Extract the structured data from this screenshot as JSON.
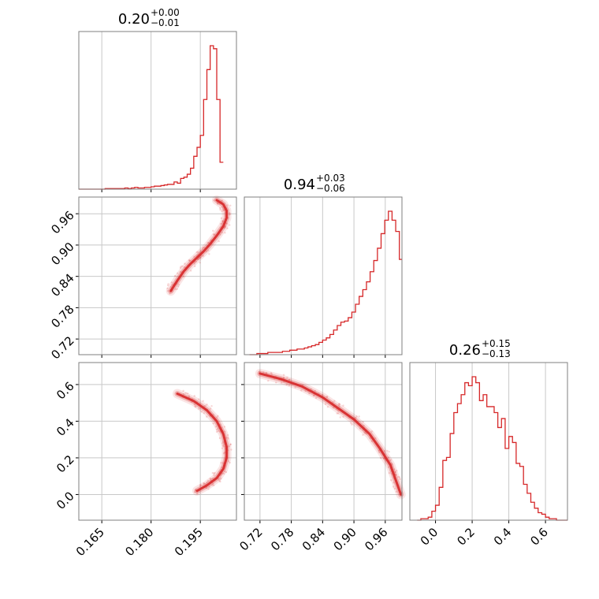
{
  "colors": {
    "series": "#d62728",
    "grid": "#c8c8c8",
    "frame": "#7f7f7f"
  },
  "chart_data": {
    "type": "corner",
    "grid": true,
    "titles": [
      {
        "central": "0.20",
        "plus": "+0.00",
        "minus": "−0.01"
      },
      {
        "central": "0.94",
        "plus": "+0.03",
        "minus": "−0.06"
      },
      {
        "central": "0.26",
        "plus": "+0.15",
        "minus": "−0.13"
      }
    ],
    "params": [
      {
        "range": [
          0.158,
          0.206
        ],
        "ticks": [
          0.165,
          0.18,
          0.195
        ],
        "tick_labels": [
          "0.165",
          "0.180",
          "0.195"
        ]
      },
      {
        "range": [
          0.69,
          0.992
        ],
        "ticks": [
          0.72,
          0.78,
          0.84,
          0.9,
          0.96
        ],
        "tick_labels": [
          "0.72",
          "0.78",
          "0.84",
          "0.90",
          "0.96"
        ]
      },
      {
        "range": [
          -0.14,
          0.72
        ],
        "ticks": [
          0.0,
          0.2,
          0.4,
          0.6
        ],
        "tick_labels": [
          "0.0",
          "0.2",
          "0.4",
          "0.6"
        ]
      }
    ],
    "histograms": [
      {
        "edges_start": 0.158,
        "bin_width": 0.001,
        "heights": [
          0,
          0,
          0,
          0,
          0,
          0,
          0,
          0,
          1,
          1,
          1,
          1,
          1,
          1,
          2,
          1,
          2,
          3,
          2,
          2,
          3,
          3,
          4,
          5,
          5,
          6,
          7,
          8,
          8,
          12,
          10,
          18,
          20,
          25,
          35,
          55,
          70,
          90,
          150,
          200,
          240,
          235,
          150,
          45
        ]
      },
      {
        "edges_start": 0.7,
        "bin_width": 0.007,
        "heights": [
          0,
          0,
          1,
          1,
          1,
          2,
          2,
          2,
          2,
          3,
          3,
          4,
          4,
          5,
          5,
          6,
          7,
          8,
          9,
          11,
          13,
          15,
          18,
          22,
          26,
          29,
          30,
          33,
          38,
          45,
          52,
          58,
          65,
          74,
          84,
          95,
          108,
          120,
          128,
          120,
          110,
          85
        ]
      },
      {
        "edges_start": -0.1,
        "bin_width": 0.02,
        "heights": [
          0,
          1,
          1,
          2,
          6,
          10,
          22,
          40,
          42,
          58,
          72,
          78,
          84,
          92,
          90,
          96,
          92,
          80,
          84,
          76,
          76,
          72,
          62,
          68,
          48,
          56,
          52,
          38,
          36,
          24,
          18,
          12,
          8,
          5,
          4,
          2,
          1,
          1,
          0,
          0,
          0
        ]
      }
    ],
    "scatter_pairs": [
      {
        "x_param": 0,
        "y_param": 1,
        "ridge": [
          [
            0.186,
            0.812
          ],
          [
            0.188,
            0.832
          ],
          [
            0.19,
            0.85
          ],
          [
            0.192,
            0.864
          ],
          [
            0.194,
            0.876
          ],
          [
            0.196,
            0.888
          ],
          [
            0.198,
            0.902
          ],
          [
            0.2,
            0.918
          ],
          [
            0.202,
            0.936
          ],
          [
            0.203,
            0.952
          ],
          [
            0.203,
            0.966
          ],
          [
            0.202,
            0.978
          ],
          [
            0.2,
            0.986
          ]
        ]
      },
      {
        "x_param": 0,
        "y_param": 2,
        "ridge": [
          [
            0.188,
            0.55
          ],
          [
            0.193,
            0.51
          ],
          [
            0.197,
            0.46
          ],
          [
            0.2,
            0.4
          ],
          [
            0.202,
            0.33
          ],
          [
            0.203,
            0.26
          ],
          [
            0.203,
            0.2
          ],
          [
            0.202,
            0.14
          ],
          [
            0.2,
            0.09
          ],
          [
            0.197,
            0.05
          ],
          [
            0.194,
            0.02
          ]
        ]
      },
      {
        "x_param": 1,
        "y_param": 2,
        "ridge": [
          [
            0.72,
            0.66
          ],
          [
            0.76,
            0.63
          ],
          [
            0.8,
            0.59
          ],
          [
            0.84,
            0.53
          ],
          [
            0.87,
            0.47
          ],
          [
            0.9,
            0.41
          ],
          [
            0.93,
            0.33
          ],
          [
            0.95,
            0.25
          ],
          [
            0.97,
            0.16
          ],
          [
            0.98,
            0.08
          ],
          [
            0.99,
            0.0
          ]
        ]
      }
    ]
  }
}
